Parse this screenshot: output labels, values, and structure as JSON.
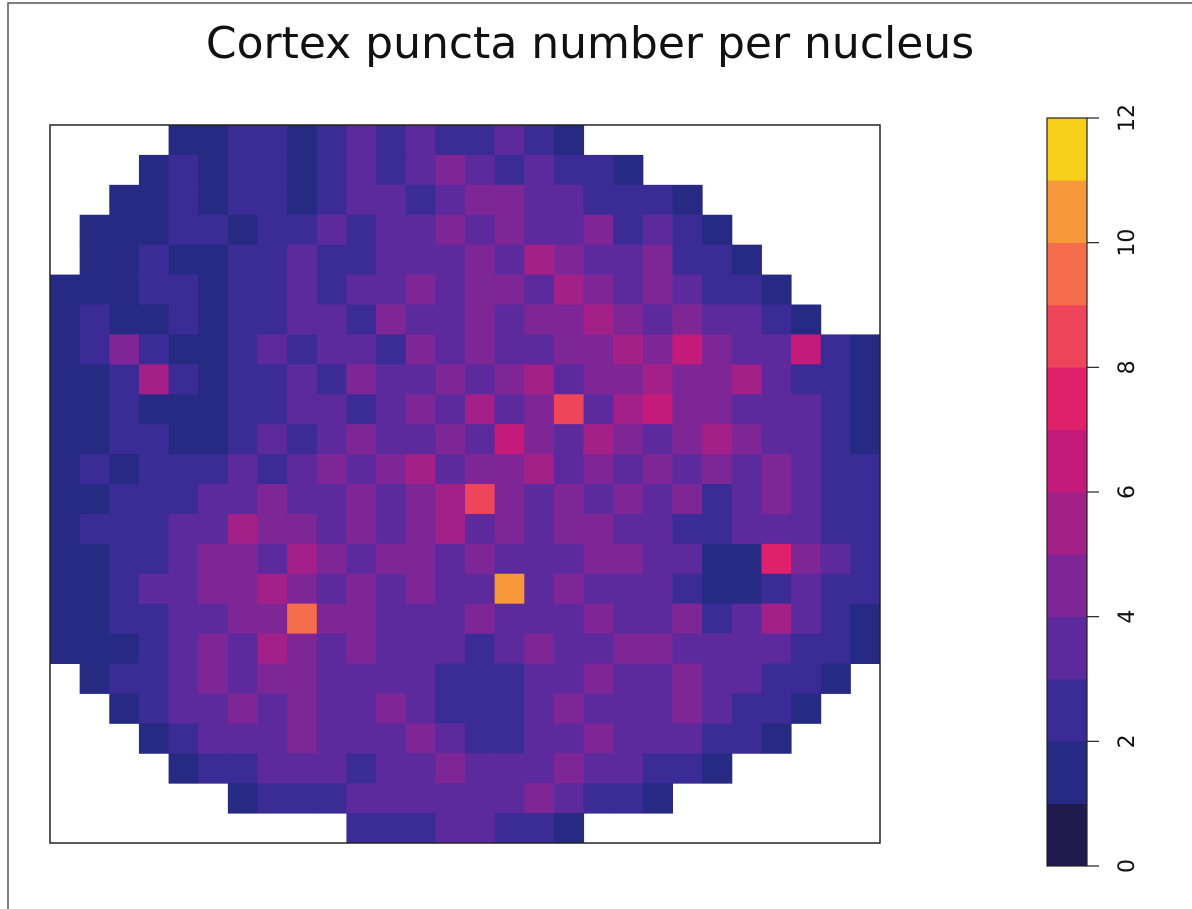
{
  "chart_data": {
    "type": "heatmap",
    "title": "Cortex puncta number per nucleus",
    "zlim": [
      0,
      12
    ],
    "zticks": [
      0,
      2,
      4,
      6,
      8,
      10,
      12
    ],
    "colors": [
      "#211a4e",
      "#262a82",
      "#3b2b96",
      "#5c2a9c",
      "#7e2696",
      "#a22088",
      "#c41a79",
      "#e0206a",
      "#ee455b",
      "#f56d4c",
      "#f7993a",
      "#f5cf18"
    ],
    "z": [
      [
        null,
        null,
        null,
        null,
        1,
        1,
        2,
        2,
        1,
        2,
        3,
        2,
        3,
        2,
        2,
        3,
        2,
        1,
        null,
        null,
        null,
        null,
        null,
        null,
        null,
        null,
        null,
        null
      ],
      [
        null,
        null,
        null,
        1,
        2,
        1,
        2,
        2,
        1,
        2,
        3,
        2,
        3,
        4,
        3,
        2,
        3,
        2,
        2,
        1,
        null,
        null,
        null,
        null,
        null,
        null,
        null,
        null
      ],
      [
        null,
        null,
        1,
        1,
        2,
        1,
        2,
        2,
        1,
        2,
        3,
        3,
        2,
        3,
        4,
        4,
        3,
        3,
        2,
        2,
        2,
        1,
        null,
        null,
        null,
        null,
        null,
        null
      ],
      [
        null,
        1,
        1,
        1,
        2,
        2,
        1,
        2,
        2,
        3,
        2,
        3,
        3,
        4,
        3,
        4,
        3,
        3,
        4,
        2,
        3,
        2,
        1,
        null,
        null,
        null,
        null,
        null
      ],
      [
        null,
        1,
        1,
        2,
        1,
        1,
        2,
        2,
        3,
        2,
        2,
        3,
        3,
        3,
        4,
        3,
        5,
        4,
        3,
        3,
        4,
        2,
        2,
        1,
        null,
        null,
        null,
        null
      ],
      [
        1,
        1,
        1,
        2,
        2,
        1,
        2,
        2,
        3,
        2,
        3,
        3,
        4,
        3,
        4,
        4,
        3,
        5,
        4,
        3,
        4,
        3,
        2,
        2,
        1,
        null,
        null,
        null
      ],
      [
        1,
        2,
        1,
        1,
        2,
        1,
        2,
        2,
        3,
        3,
        2,
        4,
        3,
        3,
        4,
        3,
        4,
        4,
        5,
        4,
        3,
        4,
        3,
        3,
        2,
        1,
        null,
        null
      ],
      [
        1,
        2,
        4,
        2,
        1,
        1,
        2,
        3,
        2,
        3,
        3,
        2,
        4,
        3,
        4,
        3,
        3,
        4,
        4,
        5,
        4,
        6,
        4,
        3,
        3,
        6,
        2,
        1
      ],
      [
        1,
        1,
        2,
        5,
        2,
        1,
        2,
        2,
        3,
        2,
        4,
        3,
        3,
        4,
        3,
        4,
        5,
        3,
        4,
        4,
        5,
        4,
        4,
        5,
        3,
        2,
        2,
        1
      ],
      [
        1,
        1,
        2,
        1,
        1,
        1,
        2,
        2,
        3,
        3,
        2,
        3,
        4,
        3,
        5,
        3,
        4,
        8,
        3,
        5,
        6,
        4,
        4,
        3,
        3,
        3,
        2,
        1
      ],
      [
        1,
        1,
        2,
        2,
        1,
        1,
        2,
        3,
        2,
        3,
        4,
        3,
        3,
        4,
        3,
        6,
        4,
        3,
        5,
        4,
        3,
        4,
        5,
        4,
        3,
        3,
        2,
        1
      ],
      [
        1,
        2,
        1,
        2,
        2,
        2,
        3,
        2,
        3,
        4,
        3,
        4,
        5,
        3,
        4,
        4,
        5,
        3,
        4,
        3,
        4,
        3,
        4,
        3,
        4,
        3,
        2,
        2
      ],
      [
        1,
        1,
        2,
        2,
        2,
        3,
        3,
        4,
        3,
        3,
        4,
        3,
        4,
        5,
        8,
        4,
        3,
        4,
        3,
        4,
        3,
        4,
        2,
        3,
        4,
        3,
        2,
        2
      ],
      [
        1,
        2,
        2,
        2,
        3,
        3,
        5,
        4,
        4,
        3,
        4,
        3,
        4,
        5,
        3,
        4,
        3,
        4,
        4,
        3,
        3,
        2,
        2,
        3,
        3,
        3,
        2,
        2
      ],
      [
        1,
        1,
        2,
        2,
        3,
        4,
        4,
        3,
        5,
        4,
        3,
        4,
        4,
        3,
        4,
        3,
        3,
        3,
        4,
        4,
        3,
        3,
        1,
        1,
        7,
        4,
        3,
        2
      ],
      [
        1,
        1,
        2,
        3,
        3,
        4,
        4,
        5,
        4,
        3,
        4,
        3,
        4,
        3,
        3,
        10,
        3,
        4,
        3,
        3,
        3,
        2,
        1,
        1,
        2,
        3,
        2,
        2
      ],
      [
        1,
        1,
        2,
        2,
        3,
        3,
        4,
        4,
        9,
        4,
        4,
        3,
        3,
        3,
        4,
        3,
        3,
        3,
        4,
        3,
        3,
        4,
        2,
        3,
        5,
        3,
        2,
        1
      ],
      [
        1,
        1,
        1,
        2,
        3,
        4,
        3,
        5,
        4,
        3,
        4,
        3,
        3,
        3,
        2,
        3,
        4,
        3,
        3,
        4,
        4,
        3,
        3,
        3,
        3,
        2,
        2,
        1
      ],
      [
        null,
        1,
        2,
        2,
        3,
        4,
        3,
        4,
        4,
        3,
        3,
        3,
        3,
        2,
        2,
        2,
        3,
        3,
        4,
        3,
        3,
        4,
        3,
        3,
        2,
        2,
        1,
        null
      ],
      [
        null,
        null,
        1,
        2,
        3,
        3,
        4,
        3,
        4,
        3,
        3,
        4,
        3,
        2,
        2,
        2,
        3,
        4,
        3,
        3,
        3,
        4,
        3,
        2,
        2,
        1,
        null,
        null
      ],
      [
        null,
        null,
        null,
        1,
        2,
        3,
        3,
        3,
        4,
        3,
        3,
        3,
        4,
        3,
        2,
        2,
        3,
        3,
        4,
        3,
        3,
        3,
        2,
        2,
        1,
        null,
        null,
        null
      ],
      [
        null,
        null,
        null,
        null,
        1,
        2,
        2,
        3,
        3,
        3,
        2,
        3,
        3,
        4,
        3,
        3,
        3,
        4,
        3,
        3,
        2,
        2,
        1,
        null,
        null,
        null,
        null,
        null
      ],
      [
        null,
        null,
        null,
        null,
        null,
        null,
        1,
        2,
        2,
        2,
        3,
        3,
        3,
        3,
        3,
        3,
        4,
        3,
        2,
        2,
        1,
        null,
        null,
        null,
        null,
        null,
        null,
        null
      ],
      [
        null,
        null,
        null,
        null,
        null,
        null,
        null,
        null,
        null,
        null,
        2,
        2,
        2,
        3,
        3,
        2,
        2,
        1,
        null,
        null,
        null,
        null,
        null,
        null,
        null,
        null,
        null,
        null
      ]
    ]
  }
}
